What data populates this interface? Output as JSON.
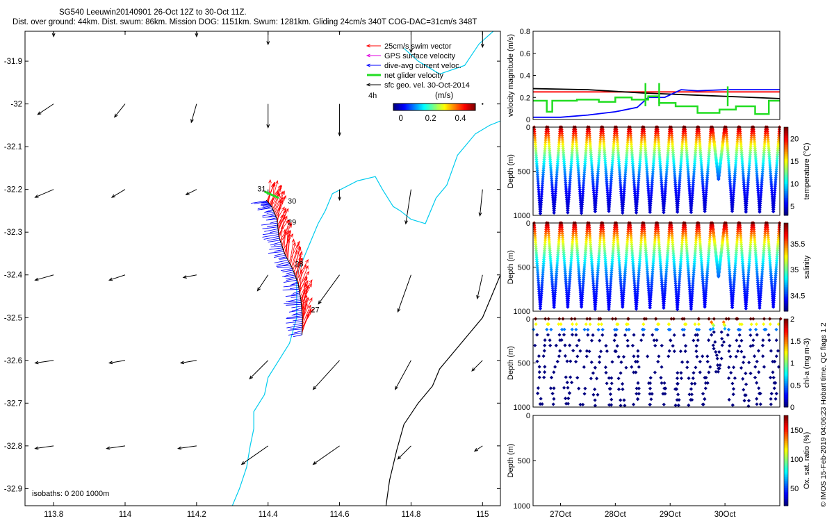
{
  "header": {
    "title": "SG540 Leeuwin20140901 26-Oct 12Z to 30-Oct 11Z.",
    "subtitle": "Dist. over ground: 44km. Dist. swum: 86km. Mission DOG: 1151km. Swum: 1281km. Gliding 24cm/s 340T COG-DAC=31cm/s 348T"
  },
  "footer": {
    "credit": "© IMOS 15-Feb-2019 04:06:23 Hobart time. QC flags 1  2"
  },
  "colors": {
    "swim": "#ff0000",
    "gps": "#e000e0",
    "dac": "#0000ff",
    "net": "#22dd22",
    "geo": "#000000",
    "isobath0": "#00ccee",
    "isobath_deep": "#000000"
  },
  "chart_data": [
    {
      "id": "map",
      "type": "scatter",
      "title": "",
      "xlabel": "",
      "ylabel": "",
      "xlim": [
        113.72,
        115.05
      ],
      "ylim": [
        -32.94,
        -31.83
      ],
      "x_ticks": [
        "113.8",
        "114",
        "114.2",
        "114.4",
        "114.6",
        "114.8",
        "115"
      ],
      "x_tick_values": [
        113.8,
        114.0,
        114.2,
        114.4,
        114.6,
        114.8,
        115.0
      ],
      "y_ticks": [
        "-31.9",
        "-32",
        "-32.1",
        "-32.2",
        "-32.3",
        "-32.4",
        "-32.5",
        "-32.6",
        "-32.7",
        "-32.8",
        "-32.9"
      ],
      "y_tick_values": [
        -31.9,
        -32.0,
        -32.1,
        -32.2,
        -32.3,
        -32.4,
        -32.5,
        -32.6,
        -32.7,
        -32.8,
        -32.9
      ],
      "legend": {
        "placement": "top-right",
        "items": [
          {
            "label": "25cm/s swim vector",
            "color": "#ff0000"
          },
          {
            "label": "GPS surface velocity",
            "color": "#e000e0"
          },
          {
            "label": "dive-avg current veloc.",
            "color": "#0000ff"
          },
          {
            "label": "net glider velocity",
            "color": "#22dd22"
          },
          {
            "label": "sfc geo. vel. 30-Oct-2014",
            "color": "#000000"
          }
        ],
        "interval_label": "4h"
      },
      "colorbar": {
        "label": "(m/s)",
        "ticks": [
          "0",
          "0.2",
          "0.4"
        ],
        "tick_values": [
          0,
          0.2,
          0.4
        ],
        "range": [
          -0.05,
          0.5
        ]
      },
      "isobaths_label": "isobaths: 0   200  1000m",
      "track": [
        {
          "lon": 114.495,
          "lat": -32.54
        },
        {
          "lon": 114.496,
          "lat": -32.5
        },
        {
          "lon": 114.492,
          "lat": -32.46
        },
        {
          "lon": 114.484,
          "lat": -32.42
        },
        {
          "lon": 114.468,
          "lat": -32.385
        },
        {
          "lon": 114.446,
          "lat": -32.35
        },
        {
          "lon": 114.43,
          "lat": -32.31
        },
        {
          "lon": 114.425,
          "lat": -32.27
        },
        {
          "lon": 114.41,
          "lat": -32.24
        },
        {
          "lon": 114.395,
          "lat": -32.225
        }
      ],
      "day_labels": [
        {
          "text": "31",
          "lon": 114.37,
          "lat": -32.205
        },
        {
          "text": "30",
          "lon": 114.455,
          "lat": -32.233
        },
        {
          "text": "29",
          "lon": 114.455,
          "lat": -32.283
        },
        {
          "text": "28",
          "lon": 114.475,
          "lat": -32.38
        },
        {
          "text": "27",
          "lon": 114.52,
          "lat": -32.487
        }
      ],
      "isobath_0": [
        {
          "lon": 114.3,
          "lat": -32.94
        },
        {
          "lon": 114.32,
          "lat": -32.9
        },
        {
          "lon": 114.34,
          "lat": -32.85
        },
        {
          "lon": 114.35,
          "lat": -32.8
        },
        {
          "lon": 114.36,
          "lat": -32.76
        },
        {
          "lon": 114.36,
          "lat": -32.72
        },
        {
          "lon": 114.39,
          "lat": -32.68
        },
        {
          "lon": 114.4,
          "lat": -32.64
        },
        {
          "lon": 114.43,
          "lat": -32.6
        },
        {
          "lon": 114.46,
          "lat": -32.56
        },
        {
          "lon": 114.48,
          "lat": -32.5
        },
        {
          "lon": 114.48,
          "lat": -32.45
        },
        {
          "lon": 114.48,
          "lat": -32.4
        },
        {
          "lon": 114.5,
          "lat": -32.36
        },
        {
          "lon": 114.52,
          "lat": -32.32
        },
        {
          "lon": 114.54,
          "lat": -32.28
        },
        {
          "lon": 114.56,
          "lat": -32.25
        },
        {
          "lon": 114.58,
          "lat": -32.21
        },
        {
          "lon": 114.65,
          "lat": -32.18
        },
        {
          "lon": 114.7,
          "lat": -32.17
        },
        {
          "lon": 114.72,
          "lat": -32.2
        },
        {
          "lon": 114.75,
          "lat": -32.24
        },
        {
          "lon": 114.77,
          "lat": -32.25
        },
        {
          "lon": 114.8,
          "lat": -32.27
        },
        {
          "lon": 114.84,
          "lat": -32.28
        },
        {
          "lon": 114.87,
          "lat": -32.22
        },
        {
          "lon": 114.9,
          "lat": -32.19
        },
        {
          "lon": 114.93,
          "lat": -32.12
        },
        {
          "lon": 114.98,
          "lat": -32.07
        },
        {
          "lon": 115.02,
          "lat": -32.05
        },
        {
          "lon": 115.05,
          "lat": -32.04
        }
      ],
      "isobath_0_upper": [
        {
          "lon": 114.78,
          "lat": -31.87
        },
        {
          "lon": 114.82,
          "lat": -31.9
        },
        {
          "lon": 114.88,
          "lat": -31.93
        },
        {
          "lon": 114.95,
          "lat": -31.91
        },
        {
          "lon": 114.99,
          "lat": -31.86
        },
        {
          "lon": 115.03,
          "lat": -31.83
        }
      ],
      "isobath_1000": [
        {
          "lon": 114.73,
          "lat": -32.94
        },
        {
          "lon": 114.74,
          "lat": -32.88
        },
        {
          "lon": 114.76,
          "lat": -32.81
        },
        {
          "lon": 114.78,
          "lat": -32.75
        },
        {
          "lon": 114.82,
          "lat": -32.7
        },
        {
          "lon": 114.86,
          "lat": -32.66
        },
        {
          "lon": 114.88,
          "lat": -32.62
        },
        {
          "lon": 114.92,
          "lat": -32.58
        },
        {
          "lon": 114.96,
          "lat": -32.54
        },
        {
          "lon": 115.0,
          "lat": -32.5
        },
        {
          "lon": 115.03,
          "lat": -32.44
        },
        {
          "lon": 115.05,
          "lat": -32.4
        }
      ],
      "geo_vectors": {
        "lons": [
          113.8,
          114.0,
          114.2,
          114.4,
          114.6,
          114.8,
          115.0
        ],
        "lats": [
          -31.83,
          -32.0,
          -32.2,
          -32.4,
          -32.6,
          -32.8
        ],
        "u": [
          [
            0.0,
            0.0,
            0.0,
            0.0,
            0.0,
            0.0,
            0.0
          ],
          [
            -0.06,
            -0.04,
            -0.02,
            0.0,
            0.0,
            0.0,
            0.0
          ],
          [
            -0.07,
            -0.05,
            -0.04,
            0.0,
            0.0,
            -0.02,
            -0.01
          ],
          [
            -0.07,
            -0.06,
            -0.05,
            -0.04,
            -0.08,
            -0.05,
            -0.02
          ],
          [
            -0.07,
            -0.06,
            -0.06,
            -0.07,
            -0.1,
            -0.06,
            -0.04
          ],
          [
            -0.07,
            -0.07,
            -0.07,
            -0.1,
            -0.1,
            -0.05,
            -0.03
          ]
        ],
        "v": [
          [
            -0.02,
            0.0,
            -0.02,
            -0.05,
            0.0,
            -0.08,
            -0.06
          ],
          [
            -0.04,
            -0.05,
            -0.07,
            -0.09,
            -0.12,
            0.0,
            0.0
          ],
          [
            -0.03,
            -0.03,
            -0.02,
            -0.02,
            -0.04,
            -0.13,
            -0.1
          ],
          [
            -0.02,
            -0.02,
            -0.01,
            -0.06,
            -0.11,
            -0.14,
            -0.09
          ],
          [
            -0.01,
            -0.01,
            -0.01,
            -0.07,
            -0.11,
            -0.11,
            -0.04
          ],
          [
            -0.01,
            -0.01,
            -0.01,
            -0.07,
            -0.07,
            -0.05,
            -0.02
          ]
        ]
      }
    },
    {
      "id": "velocity",
      "type": "line",
      "xlim": [
        26.5,
        31.0
      ],
      "ylim": [
        0,
        0.8
      ],
      "ylabel": "velocity magnitude (m/s)",
      "y_ticks": [
        "0",
        "0.2",
        "0.4",
        "0.6",
        "0.8"
      ],
      "y_tick_values": [
        0,
        0.2,
        0.4,
        0.6,
        0.8
      ],
      "series": [
        {
          "color": "#ff0000",
          "x": [
            26.5,
            31.0
          ],
          "y": [
            0.25,
            0.25
          ]
        },
        {
          "color": "#000000",
          "x": [
            26.5,
            27.5,
            28.5,
            29.5,
            30.5,
            31.0
          ],
          "y": [
            0.28,
            0.27,
            0.24,
            0.22,
            0.2,
            0.19
          ]
        },
        {
          "color": "#0000ff",
          "x": [
            26.5,
            27.0,
            27.5,
            28.0,
            28.4,
            28.6,
            28.9,
            29.2,
            29.5,
            30.0,
            30.5,
            31.0
          ],
          "y": [
            0.02,
            0.02,
            0.04,
            0.07,
            0.11,
            0.2,
            0.2,
            0.27,
            0.26,
            0.27,
            0.27,
            0.27
          ]
        },
        {
          "color": "#22dd22",
          "x": [
            26.5,
            26.75,
            26.75,
            26.85,
            26.85,
            27.3,
            27.3,
            27.7,
            27.7,
            28.0,
            28.0,
            28.3,
            28.3,
            28.6,
            28.6,
            28.8,
            28.8,
            29.1,
            29.1,
            29.5,
            29.5,
            29.9,
            29.9,
            30.2,
            30.2,
            30.55,
            30.55,
            30.8,
            30.8,
            31.0
          ],
          "y": [
            0.17,
            0.17,
            0.07,
            0.07,
            0.17,
            0.17,
            0.18,
            0.18,
            0.16,
            0.16,
            0.2,
            0.2,
            0.18,
            0.18,
            0.21,
            0.21,
            0.15,
            0.15,
            0.12,
            0.12,
            0.06,
            0.06,
            0.09,
            0.09,
            0.12,
            0.12,
            0.05,
            0.05,
            0.17,
            0.17
          ]
        }
      ]
    },
    {
      "id": "temperature",
      "type": "scatter",
      "ylabel": "Depth (m)",
      "clabel": "temperature (°C)",
      "xlim": [
        26.5,
        31.0
      ],
      "ylim": [
        1000,
        0
      ],
      "y_ticks": [
        "0",
        "500",
        "1000"
      ],
      "y_tick_values": [
        0,
        500,
        1000
      ],
      "c_ticks": [
        "5",
        "10",
        "15",
        "20"
      ],
      "c_tick_values": [
        5,
        10,
        15,
        20
      ],
      "crange": [
        3,
        22.5
      ],
      "profile": {
        "dives": 18,
        "max_depth": 980,
        "surface_value": 22,
        "deep_value": 4.5
      }
    },
    {
      "id": "salinity",
      "type": "scatter",
      "ylabel": "Depth (m)",
      "clabel": "salinity",
      "xlim": [
        26.5,
        31.0
      ],
      "ylim": [
        1000,
        0
      ],
      "y_ticks": [
        "0",
        "500",
        "1000"
      ],
      "y_tick_values": [
        0,
        500,
        1000
      ],
      "c_ticks": [
        "34.5",
        "35",
        "35.5"
      ],
      "c_tick_values": [
        34.5,
        35.0,
        35.5
      ],
      "crange": [
        34.2,
        35.9
      ],
      "profile": {
        "dives": 18,
        "max_depth": 980,
        "surface_value": 35.85,
        "deep_value": 34.4
      }
    },
    {
      "id": "chla",
      "type": "scatter",
      "ylabel": "Depth (m)",
      "clabel": "chl-a (mg m-3)",
      "xlim": [
        26.5,
        31.0
      ],
      "ylim": [
        1000,
        0
      ],
      "y_ticks": [
        "0",
        "500",
        "1000"
      ],
      "y_tick_values": [
        0,
        500,
        1000
      ],
      "c_ticks": [
        "0",
        "0.5",
        "1",
        "1.5",
        "2"
      ],
      "c_tick_values": [
        0,
        0.5,
        1.0,
        1.5,
        2.0
      ],
      "crange": [
        0,
        2
      ],
      "profile": {
        "dives": 18,
        "max_depth": 990,
        "surface_value": 2.0,
        "deep_value": 0.0
      }
    },
    {
      "id": "oxygen",
      "type": "scatter",
      "ylabel": "Depth (m)",
      "clabel": "Ox. sat. ratio (%)",
      "xlim": [
        26.5,
        31.0
      ],
      "ylim": [
        1000,
        0
      ],
      "y_ticks": [
        "0",
        "500",
        "1000"
      ],
      "y_tick_values": [
        0,
        500,
        1000
      ],
      "c_ticks": [
        "50",
        "100",
        "150"
      ],
      "c_tick_values": [
        50,
        100,
        150
      ],
      "crange": [
        20,
        175
      ],
      "x_ticks": [
        "27Oct",
        "28Oct",
        "29Oct",
        "30Oct"
      ],
      "x_tick_values": [
        27,
        28,
        29,
        30
      ]
    }
  ]
}
